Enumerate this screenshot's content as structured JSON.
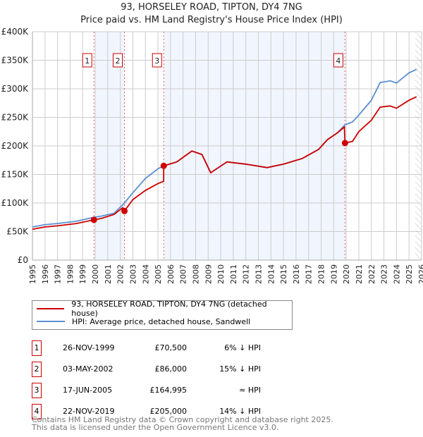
{
  "chart_data": {
    "type": "line",
    "title": "93, HORSELEY ROAD, TIPTON, DY4 7NG",
    "subtitle": "Price paid vs. HM Land Registry's House Price Index (HPI)",
    "xlabel": "",
    "ylabel": "",
    "xlim": [
      1995,
      2026
    ],
    "ylim": [
      0,
      400000
    ],
    "yticks": [
      {
        "v": 0,
        "label": "£0"
      },
      {
        "v": 50000,
        "label": "£50K"
      },
      {
        "v": 100000,
        "label": "£100K"
      },
      {
        "v": 150000,
        "label": "£150K"
      },
      {
        "v": 200000,
        "label": "£200K"
      },
      {
        "v": 250000,
        "label": "£250K"
      },
      {
        "v": 300000,
        "label": "£300K"
      },
      {
        "v": 350000,
        "label": "£350K"
      },
      {
        "v": 400000,
        "label": "£400K"
      }
    ],
    "xticks": [
      "1995",
      "1996",
      "1997",
      "1998",
      "1999",
      "2000",
      "2001",
      "2002",
      "2003",
      "2004",
      "2005",
      "2006",
      "2007",
      "2008",
      "2009",
      "2010",
      "2011",
      "2012",
      "2013",
      "2014",
      "2015",
      "2016",
      "2017",
      "2018",
      "2019",
      "2020",
      "2021",
      "2022",
      "2023",
      "2024",
      "2025",
      "2026"
    ],
    "series": [
      {
        "name": "93, HORSELEY ROAD, TIPTON, DY4 7NG (detached house)",
        "color": "#cc0000",
        "x": [
          1995,
          1996,
          1997,
          1998.5,
          1999.9,
          2000.5,
          2001.5,
          2002.2,
          2002.33,
          2003,
          2004,
          2005,
          2005.45,
          2005.46,
          2006.5,
          2007.7,
          2008.5,
          2009.2,
          2010.5,
          2012,
          2013.7,
          2015,
          2016.5,
          2017.8,
          2018.5,
          2019.3,
          2019.85,
          2019.9,
          2020.5,
          2021,
          2022,
          2022.7,
          2023.5,
          2024,
          2025,
          2025.6
        ],
        "y": [
          54000,
          58000,
          60000,
          64000,
          70500,
          73000,
          80000,
          92000,
          86000,
          106000,
          122000,
          134000,
          138000,
          164995,
          172000,
          191000,
          185000,
          153000,
          172000,
          168000,
          162000,
          168000,
          178000,
          194000,
          211000,
          223000,
          233000,
          205000,
          208000,
          225000,
          245000,
          268000,
          270000,
          266000,
          280000,
          286000
        ]
      },
      {
        "name": "HPI: Average price, detached house, Sandwell",
        "color": "#5b8fd0",
        "x": [
          1995,
          1996,
          1997,
          1998.5,
          1999.9,
          2000.5,
          2001.5,
          2002.33,
          2003,
          2004,
          2005,
          2005.45,
          2006.5,
          2007.7,
          2008.5,
          2009.2,
          2010.5,
          2012,
          2013.7,
          2015,
          2016.5,
          2017.8,
          2018.5,
          2019.3,
          2019.9,
          2020.5,
          2021,
          2022,
          2022.7,
          2023.5,
          2024,
          2025,
          2025.6
        ],
        "y": [
          58000,
          62000,
          64000,
          68000,
          75000,
          77000,
          82000,
          100000,
          118000,
          143000,
          160000,
          165000,
          172000,
          191000,
          185000,
          153000,
          172000,
          168000,
          162000,
          168000,
          178000,
          194000,
          211000,
          223000,
          237000,
          242000,
          254000,
          280000,
          311000,
          314000,
          310000,
          328000,
          334000
        ]
      }
    ],
    "sales": [
      {
        "n": "1",
        "x": 1999.9,
        "y": 70500
      },
      {
        "n": "2",
        "x": 2002.33,
        "y": 86000
      },
      {
        "n": "3",
        "x": 2005.46,
        "y": 164995
      },
      {
        "n": "4",
        "x": 2019.9,
        "y": 205000
      }
    ],
    "shaded": [
      [
        2000,
        2002.33
      ],
      [
        2005.46,
        2019.9
      ]
    ],
    "forecast_from": 2025.5
  },
  "legend": {
    "red": "93, HORSELEY ROAD, TIPTON, DY4 7NG (detached house)",
    "blue": "HPI: Average price, detached house, Sandwell"
  },
  "table": [
    {
      "n": "1",
      "date": "26-NOV-1999",
      "price": "£70,500",
      "rel": "6% ↓ HPI"
    },
    {
      "n": "2",
      "date": "03-MAY-2002",
      "price": "£86,000",
      "rel": "15% ↓ HPI"
    },
    {
      "n": "3",
      "date": "17-JUN-2005",
      "price": "£164,995",
      "rel": "≈ HPI"
    },
    {
      "n": "4",
      "date": "22-NOV-2019",
      "price": "£205,000",
      "rel": "14% ↓ HPI"
    }
  ],
  "footer": {
    "line1": "Contains HM Land Registry data © Crown copyright and database right 2025.",
    "line2": "This data is licensed under the Open Government Licence v3.0."
  }
}
